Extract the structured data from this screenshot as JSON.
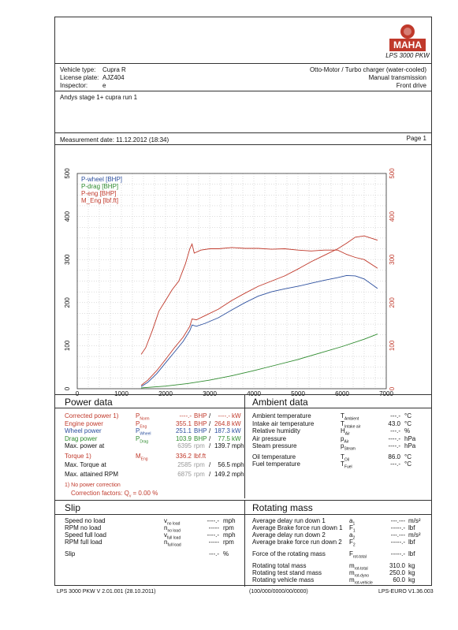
{
  "logo": {
    "brand": "MAHA",
    "model": "LPS 3000 PKW"
  },
  "header": {
    "vehicle_type_label": "Vehicle type:",
    "vehicle_type": "Cupra R",
    "license_label": "License plate:",
    "license": "AJZ404",
    "inspector_label": "Inspector:",
    "inspector": "e",
    "engine": "Otto-Motor / Turbo charger (water-cooled)",
    "transmission": "Manual transmission",
    "drive": "Front drive"
  },
  "comment": "Andys stage 1+ cupra run 1",
  "measurement": {
    "date": "Measurement date: 11.12.2012 (18:34)",
    "page": "Page 1"
  },
  "chart_data": {
    "type": "line",
    "xlabel": "n [rpm]",
    "x_ticks": [
      "0",
      "1000",
      "2000",
      "3000",
      "4000",
      "5000",
      "6000",
      "7000"
    ],
    "y_ticks_left": [
      "0",
      "100",
      "200",
      "300",
      "400",
      "500"
    ],
    "y_ticks_right": [
      "0",
      "100",
      "200",
      "300",
      "400",
      "500"
    ],
    "xlim": [
      0,
      7000
    ],
    "ylim": [
      0,
      500
    ],
    "grid": true,
    "legend_position": "top-left",
    "series": [
      {
        "name": "P-wheel [BHP]",
        "color": "#2c4f9e",
        "x": [
          1450,
          1600,
          1800,
          2000,
          2200,
          2400,
          2550,
          2600,
          2700,
          2900,
          3200,
          3500,
          3800,
          4100,
          4400,
          4700,
          5000,
          5300,
          5600,
          5900,
          6100,
          6300,
          6500,
          6800
        ],
        "y": [
          5,
          15,
          35,
          60,
          85,
          110,
          135,
          148,
          145,
          152,
          165,
          183,
          200,
          215,
          225,
          232,
          238,
          245,
          252,
          258,
          263,
          262,
          255,
          233
        ]
      },
      {
        "name": "P-drag [BHP]",
        "color": "#2e8b2e",
        "x": [
          1450,
          2000,
          2500,
          3000,
          3500,
          4000,
          4500,
          5000,
          5500,
          6000,
          6500,
          6800
        ],
        "y": [
          2,
          6,
          12,
          20,
          30,
          42,
          55,
          68,
          83,
          98,
          115,
          127
        ]
      },
      {
        "name": "P-eng [BHP]",
        "color": "#c0392b",
        "x": [
          1450,
          1600,
          1800,
          2000,
          2200,
          2400,
          2550,
          2600,
          2700,
          2900,
          3200,
          3500,
          3800,
          4100,
          4400,
          4700,
          5000,
          5300,
          5600,
          5900,
          6100,
          6300,
          6500,
          6800
        ],
        "y": [
          8,
          20,
          42,
          68,
          95,
          120,
          145,
          162,
          160,
          170,
          185,
          205,
          222,
          238,
          250,
          262,
          278,
          295,
          310,
          325,
          338,
          352,
          355,
          345
        ]
      },
      {
        "name": "M_Eng [lbf.ft]",
        "color": "#c0392b",
        "x": [
          1450,
          1550,
          1700,
          1850,
          2000,
          2150,
          2300,
          2450,
          2550,
          2600,
          2650,
          2800,
          3000,
          3200,
          3500,
          3800,
          4100,
          4400,
          4700,
          5000,
          5300,
          5600,
          5900,
          6100,
          6300,
          6500,
          6800
        ],
        "y": [
          80,
          95,
          135,
          180,
          205,
          230,
          250,
          290,
          325,
          336,
          315,
          322,
          325,
          325,
          328,
          326,
          326,
          324,
          325,
          322,
          320,
          322,
          322,
          312,
          305,
          300,
          280
        ]
      }
    ]
  },
  "power": {
    "title": "Power data",
    "rows": [
      {
        "label": "Corrected power 1)",
        "sym": "P",
        "sub": "Norm",
        "v1": "----.-",
        "u1": "BHP",
        "v2": "----.-",
        "u2": "kW"
      },
      {
        "label": "Engine power",
        "sym": "P",
        "sub": "Eng",
        "v1": "355.1",
        "u1": "BHP",
        "v2": "264.8",
        "u2": "kW"
      },
      {
        "label": "Wheel power",
        "sym": "P",
        "sub": "Wheel",
        "v1": "251.1",
        "u1": "BHP",
        "v2": "187.3",
        "u2": "kW"
      },
      {
        "label": "Drag power",
        "sym": "P",
        "sub": "Drag",
        "v1": "103.9",
        "u1": "BHP",
        "v2": "77.5",
        "u2": "kW"
      },
      {
        "label": "Max. power at",
        "v1": "6395",
        "u1": "rpm",
        "v2": "139.7",
        "u2": "mph"
      }
    ],
    "torque": {
      "label": "Torque 1)",
      "sym": "M",
      "sub": "Eng",
      "v": "336.2",
      "u": "lbf.ft"
    },
    "max_torque": {
      "label": "Max. Torque at",
      "v1": "2585",
      "u1": "rpm",
      "v2": "56.5",
      "u2": "mph"
    },
    "max_rpm": {
      "label": "Max. attained RPM",
      "v1": "6875",
      "u1": "rpm",
      "v2": "149.2",
      "u2": "mph"
    },
    "note1": "1) No power correction",
    "note2": "Correction factors: Q",
    "note2b": "v",
    "note2c": " = 0.00 %"
  },
  "ambient": {
    "title": "Ambient data",
    "rows": [
      {
        "label": "Ambient temperature",
        "sym": "T",
        "sub": "Ambient",
        "v": "---.-",
        "u": "°C"
      },
      {
        "label": "Intake air temperature",
        "sym": "T",
        "sub": "Intake air",
        "v": "43.0",
        "u": "°C"
      },
      {
        "label": "Relative humidity",
        "sym": "H",
        "sub": "Air",
        "v": "---.-",
        "u": "%"
      },
      {
        "label": "Air pressure",
        "sym": "p",
        "sub": "Air",
        "v": "----.-",
        "u": "hPa"
      },
      {
        "label": "Steam pressure",
        "sym": "p",
        "sub": "Steam",
        "v": "----.-",
        "u": "hPa"
      },
      {
        "label": "Oil temperature",
        "sym": "T",
        "sub": "Oil",
        "v": "86.0",
        "u": "°C"
      },
      {
        "label": "Fuel temperature",
        "sym": "T",
        "sub": "Fuel",
        "v": "---.-",
        "u": "°C"
      }
    ]
  },
  "slip": {
    "title": "Slip",
    "rows": [
      {
        "label": "Speed no load",
        "sym": "v",
        "sub": "no load",
        "v": "----.-",
        "u": "mph"
      },
      {
        "label": "RPM no load",
        "sym": "n",
        "sub": "no load",
        "v": "-----",
        "u": "rpm"
      },
      {
        "label": "Speed full load",
        "sym": "v",
        "sub": "full load",
        "v": "----.-",
        "u": "mph"
      },
      {
        "label": "RPM full load",
        "sym": "n",
        "sub": "full load",
        "v": "-----",
        "u": "rpm"
      },
      {
        "label": "Slip",
        "sym": "",
        "sub": "",
        "v": "---.-",
        "u": "%"
      }
    ]
  },
  "rotating": {
    "title": "Rotating mass",
    "rows": [
      {
        "label": "Average delay run down 1",
        "sym": "a",
        "sub": "1",
        "v": "---.---",
        "u": "m/s²"
      },
      {
        "label": "Average Brake force run down 1",
        "sym": "F",
        "sub": "1",
        "v": "-----.-",
        "u": "lbf"
      },
      {
        "label": "Average delay run down 2",
        "sym": "a",
        "sub": "2",
        "v": "---.---",
        "u": "m/s²"
      },
      {
        "label": "Average brake force run down 2",
        "sym": "F",
        "sub": "2",
        "v": "-----.-",
        "u": "lbf"
      },
      {
        "label": "Force of the rotating mass",
        "sym": "F",
        "sub": "rot-total",
        "v": "-----.-",
        "u": "lbf"
      },
      {
        "label": "Rotating total mass",
        "sym": "m",
        "sub": "rot-total",
        "v": "310.0",
        "u": "kg"
      },
      {
        "label": "Rotating test stand mass",
        "sym": "m",
        "sub": "rot-dyno",
        "v": "250.0",
        "u": "kg"
      },
      {
        "label": "Rotating vehicle mass",
        "sym": "m",
        "sub": "rot-vehicle",
        "v": "60.0",
        "u": "kg"
      }
    ]
  },
  "footer": {
    "left": "LPS 3000 PKW V 2.01.001 (28.10.2011)",
    "center": "(100/000/0000/00/0000)",
    "right": "LPS-EURO V1.36.003"
  }
}
